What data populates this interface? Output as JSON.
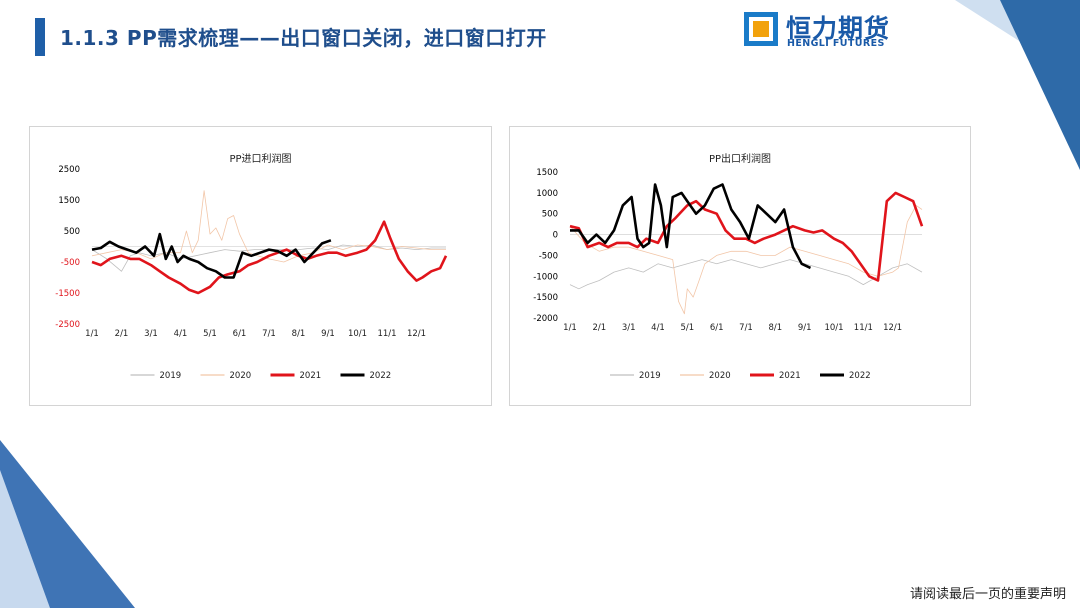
{
  "header": {
    "title": "1.1.3 PP需求梳理——出口窗口关闭，进口窗口打开"
  },
  "logo": {
    "cn": "恒力期货",
    "en": "HENGLI FUTURES"
  },
  "footer": {
    "text": "请阅读最后一页的重要声明"
  },
  "colors": {
    "s2019": "#bfbfbf",
    "s2020": "#f2c6a8",
    "s2021": "#e0141b",
    "s2022": "#000000",
    "brand": "#1a5aa8"
  },
  "chart_data": [
    {
      "type": "line",
      "title": "PP进口利润图",
      "x_ticks": [
        "1/1",
        "2/1",
        "3/1",
        "4/1",
        "5/1",
        "6/1",
        "7/1",
        "8/1",
        "9/1",
        "10/1",
        "11/1",
        "12/1"
      ],
      "y_ticks": [
        2500,
        1500,
        500,
        -500,
        -1500,
        -2500
      ],
      "ylim": [
        -2500,
        2500
      ],
      "xlim": [
        0,
        12
      ],
      "legend_position": "bottom",
      "series": [
        {
          "name": "2019",
          "x": [
            0,
            0.5,
            1,
            1.3,
            1.6,
            2,
            2.5,
            3,
            3.5,
            4,
            4.5,
            5,
            5.5,
            6,
            6.5,
            7,
            7.5,
            8,
            8.5,
            9,
            9.5,
            10,
            10.5,
            11,
            11.5,
            12
          ],
          "y": [
            -100,
            -400,
            -800,
            -300,
            -200,
            -300,
            -200,
            -400,
            -300,
            -200,
            -100,
            -150,
            -100,
            -100,
            -100,
            -100,
            -50,
            -100,
            50,
            0,
            50,
            -100,
            -50,
            -100,
            -50,
            -50
          ]
        },
        {
          "name": "2020",
          "x": [
            0,
            0.5,
            1,
            1.5,
            2,
            2.5,
            3,
            3.2,
            3.4,
            3.6,
            3.8,
            4,
            4.2,
            4.4,
            4.6,
            4.8,
            5,
            5.3,
            5.6,
            6,
            6.5,
            7,
            7.5,
            8,
            8.5,
            9,
            9.5,
            10,
            10.5,
            11,
            11.5,
            12
          ],
          "y": [
            -300,
            -200,
            -100,
            -200,
            -400,
            -200,
            -200,
            500,
            -200,
            200,
            1800,
            400,
            600,
            200,
            900,
            1000,
            400,
            -200,
            -300,
            -400,
            -500,
            -300,
            -200,
            50,
            -100,
            50,
            0,
            -100,
            0,
            -50,
            -100,
            -100
          ]
        },
        {
          "name": "2021",
          "x": [
            0,
            0.3,
            0.6,
            1,
            1.3,
            1.6,
            2,
            2.3,
            2.6,
            3,
            3.3,
            3.6,
            4,
            4.3,
            4.6,
            5,
            5.3,
            5.6,
            6,
            6.3,
            6.6,
            7,
            7.3,
            7.6,
            8,
            8.3,
            8.6,
            9,
            9.3,
            9.6,
            9.9,
            10.1,
            10.4,
            10.7,
            11,
            11.2,
            11.5,
            11.8,
            12
          ],
          "y": [
            -500,
            -600,
            -400,
            -300,
            -400,
            -400,
            -600,
            -800,
            -1000,
            -1200,
            -1400,
            -1500,
            -1300,
            -1000,
            -900,
            -800,
            -600,
            -500,
            -300,
            -200,
            -100,
            -300,
            -400,
            -300,
            -200,
            -200,
            -300,
            -200,
            -100,
            200,
            800,
            300,
            -400,
            -800,
            -1100,
            -1000,
            -800,
            -700,
            -300
          ]
        },
        {
          "name": "2022",
          "x": [
            0,
            0.3,
            0.6,
            0.9,
            1.2,
            1.5,
            1.8,
            2.1,
            2.3,
            2.5,
            2.7,
            2.9,
            3.1,
            3.3,
            3.6,
            3.9,
            4.2,
            4.5,
            4.8,
            5.1,
            5.4,
            5.7,
            6,
            6.3,
            6.6,
            6.9,
            7.2,
            7.5,
            7.8,
            8.1
          ],
          "y": [
            -100,
            -50,
            150,
            0,
            -100,
            -200,
            0,
            -300,
            400,
            -400,
            0,
            -500,
            -300,
            -400,
            -500,
            -700,
            -800,
            -1000,
            -1000,
            -200,
            -300,
            -200,
            -100,
            -150,
            -300,
            -100,
            -500,
            -200,
            100,
            200
          ]
        }
      ]
    },
    {
      "type": "line",
      "title": "PP出口利润图",
      "x_ticks": [
        "1/1",
        "2/1",
        "3/1",
        "4/1",
        "5/1",
        "6/1",
        "7/1",
        "8/1",
        "9/1",
        "10/1",
        "11/1",
        "12/1"
      ],
      "y_ticks": [
        1500,
        1000,
        500,
        0,
        -500,
        -1000,
        -1500,
        -2000
      ],
      "ylim": [
        -2000,
        1500
      ],
      "xlim": [
        0,
        12
      ],
      "legend_position": "bottom",
      "series": [
        {
          "name": "2019",
          "x": [
            0,
            0.3,
            0.6,
            1,
            1.5,
            2,
            2.5,
            3,
            3.5,
            4,
            4.5,
            5,
            5.5,
            6,
            6.5,
            7,
            7.5,
            8,
            8.5,
            9,
            9.5,
            10,
            10.5,
            11,
            11.5,
            12
          ],
          "y": [
            -1200,
            -1300,
            -1200,
            -1100,
            -900,
            -800,
            -900,
            -700,
            -800,
            -700,
            -600,
            -700,
            -600,
            -700,
            -800,
            -700,
            -600,
            -700,
            -800,
            -900,
            -1000,
            -1200,
            -1000,
            -800,
            -700,
            -900
          ]
        },
        {
          "name": "2020",
          "x": [
            0,
            0.5,
            1,
            1.5,
            2,
            2.5,
            3,
            3.5,
            3.7,
            3.9,
            4,
            4.2,
            4.4,
            4.6,
            4.8,
            5,
            5.5,
            6,
            6.5,
            7,
            7.5,
            8,
            8.5,
            9,
            9.5,
            10,
            10.5,
            11,
            11.2,
            11.5,
            11.8,
            12
          ],
          "y": [
            200,
            -200,
            -400,
            -300,
            -300,
            -400,
            -500,
            -600,
            -1600,
            -1900,
            -1300,
            -1500,
            -1100,
            -700,
            -600,
            -500,
            -400,
            -400,
            -500,
            -500,
            -300,
            -400,
            -500,
            -600,
            -700,
            -900,
            -1000,
            -900,
            -800,
            300,
            700,
            600
          ]
        },
        {
          "name": "2021",
          "x": [
            0,
            0.3,
            0.6,
            1,
            1.3,
            1.6,
            2,
            2.3,
            2.6,
            3,
            3.3,
            3.6,
            4,
            4.3,
            4.6,
            5,
            5.3,
            5.6,
            6,
            6.3,
            6.6,
            7,
            7.3,
            7.6,
            8,
            8.3,
            8.6,
            9,
            9.3,
            9.6,
            9.9,
            10.2,
            10.5,
            10.8,
            11.1,
            11.4,
            11.7,
            12
          ],
          "y": [
            200,
            150,
            -300,
            -200,
            -300,
            -200,
            -200,
            -300,
            -100,
            -200,
            200,
            400,
            700,
            800,
            600,
            500,
            100,
            -100,
            -100,
            -200,
            -100,
            0,
            100,
            200,
            100,
            50,
            100,
            -100,
            -200,
            -400,
            -700,
            -1000,
            -1100,
            800,
            1000,
            900,
            800,
            200
          ]
        },
        {
          "name": "2022",
          "x": [
            0,
            0.3,
            0.6,
            0.9,
            1.2,
            1.5,
            1.8,
            2.1,
            2.3,
            2.5,
            2.7,
            2.9,
            3.1,
            3.3,
            3.5,
            3.8,
            4,
            4.3,
            4.6,
            4.9,
            5.2,
            5.5,
            5.8,
            6.1,
            6.4,
            6.7,
            7,
            7.3,
            7.6,
            7.9,
            8.2
          ],
          "y": [
            100,
            100,
            -200,
            0,
            -200,
            100,
            700,
            900,
            -100,
            -300,
            -200,
            1200,
            700,
            -300,
            900,
            1000,
            800,
            500,
            700,
            1100,
            1200,
            600,
            300,
            -100,
            700,
            500,
            300,
            600,
            -300,
            -700,
            -800
          ]
        }
      ]
    }
  ]
}
